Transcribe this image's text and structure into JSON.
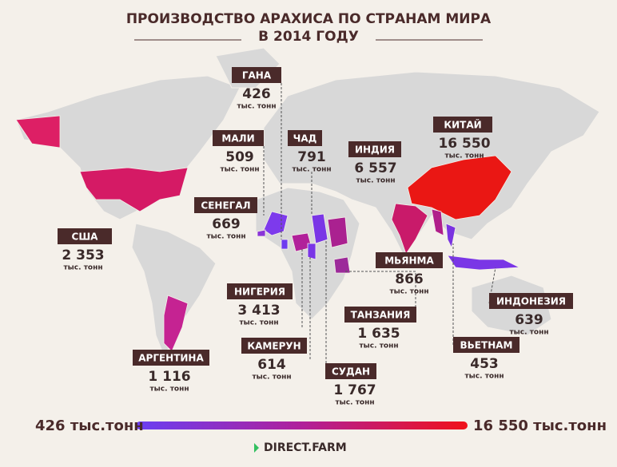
{
  "title": [
    "ПРОИЗВОДСТВО АРАХИСА ПО СТРАНАМ МИРА",
    "В 2014 ГОДУ"
  ],
  "countries": [
    {
      "name": "ГАНА",
      "value": "426",
      "unit": "тыс. тонн"
    },
    {
      "name": "МАЛИ",
      "value": "509",
      "unit": "тыс. тонн"
    },
    {
      "name": "ЧАД",
      "value": "791",
      "unit": "тыс. тонн"
    },
    {
      "name": "ИНДИЯ",
      "value": "6 557",
      "unit": "тыс. тонн"
    },
    {
      "name": "КИТАЙ",
      "value": "16 550",
      "unit": "тыс. тонн"
    },
    {
      "name": "СЕНЕГАЛ",
      "value": "669",
      "unit": "тыс. тонн"
    },
    {
      "name": "США",
      "value": "2 353",
      "unit": "тыс. тонн"
    },
    {
      "name": "МЬЯНМА",
      "value": "866",
      "unit": "тыс. тонн"
    },
    {
      "name": "НИГЕРИЯ",
      "value": "3 413",
      "unit": "тыс. тонн"
    },
    {
      "name": "ИНДОНЕЗИЯ",
      "value": "639",
      "unit": "тыс. тонн"
    },
    {
      "name": "ТАНЗАНИЯ",
      "value": "1 635",
      "unit": "тыс. тонн"
    },
    {
      "name": "КАМЕРУН",
      "value": "614",
      "unit": "тыс. тонн"
    },
    {
      "name": "ВЬЕТНАМ",
      "value": "453",
      "unit": "тыс. тонн"
    },
    {
      "name": "АРГЕНТИНА",
      "value": "1 116",
      "unit": "тыс. тонн"
    },
    {
      "name": "СУДАН",
      "value": "1 767",
      "unit": "тыс. тонн"
    }
  ],
  "legend": {
    "min": "426 тыс.тонн",
    "max": "16 550 тыс.тонн"
  },
  "brand": "DIRECT.FARM"
}
